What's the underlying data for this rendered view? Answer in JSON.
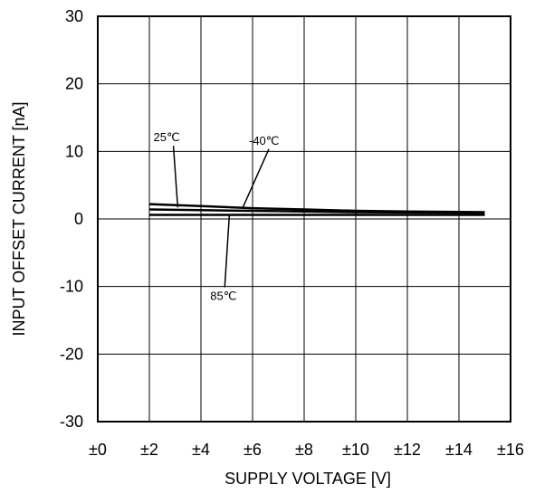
{
  "chart_data": {
    "type": "line",
    "title": "",
    "xlabel": "SUPPLY VOLTAGE [V]",
    "ylabel": "INPUT OFFSET CURRENT [nA]",
    "xlim": [
      0,
      16
    ],
    "ylim": [
      -30,
      30
    ],
    "x_ticks": [
      0,
      2,
      4,
      6,
      8,
      10,
      12,
      14,
      16
    ],
    "x_tick_labels": [
      "±0",
      "±2",
      "±4",
      "±6",
      "±8",
      "±10",
      "±12",
      "±14",
      "±16"
    ],
    "y_ticks": [
      30,
      20,
      10,
      0,
      -10,
      -20,
      -30
    ],
    "y_tick_labels": [
      "30",
      "20",
      "10",
      "0",
      "-10",
      "-20",
      "-30"
    ],
    "grid": true,
    "series": [
      {
        "name": "25℃",
        "x": [
          2,
          4,
          6,
          8,
          10,
          12,
          15
        ],
        "y": [
          2.2,
          1.9,
          1.6,
          1.4,
          1.2,
          1.1,
          1.0
        ]
      },
      {
        "name": "-40℃",
        "x": [
          2,
          4,
          6,
          8,
          10,
          12,
          15
        ],
        "y": [
          1.4,
          1.3,
          1.2,
          1.1,
          1.0,
          0.95,
          0.9
        ]
      },
      {
        "name": "85℃",
        "x": [
          2,
          4,
          6,
          8,
          10,
          12,
          15
        ],
        "y": [
          0.6,
          0.6,
          0.6,
          0.6,
          0.6,
          0.6,
          0.6
        ]
      }
    ],
    "annotations": [
      {
        "text": "25℃",
        "series": "25℃",
        "x": 3.1,
        "y": 1.7,
        "tx": 2.3,
        "ty": 11.5
      },
      {
        "text": "-40℃",
        "series": "-40℃",
        "x": 5.6,
        "y": 1.5,
        "tx": 6.0,
        "ty": 11.0
      },
      {
        "text": "85℃",
        "series": "85℃",
        "x": 5.1,
        "y": 0.6,
        "tx": 4.5,
        "ty": -12.0
      }
    ]
  }
}
